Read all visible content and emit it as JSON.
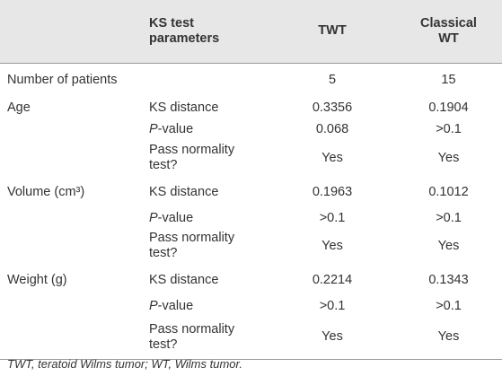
{
  "table": {
    "header": {
      "parameters": "KS test parameters",
      "columns": [
        "TWT",
        "Classical WT"
      ]
    },
    "rows": [
      {
        "label": "Number of patients",
        "values": [
          "5",
          "15"
        ]
      },
      {
        "label": "Age",
        "params": [
          {
            "name": "KS distance",
            "values": [
              "0.3356",
              "0.1904"
            ]
          },
          {
            "name": "P-value",
            "values": [
              "0.068",
              ">0.1"
            ]
          },
          {
            "name": "Pass normality test?",
            "values": [
              "Yes",
              "Yes"
            ]
          }
        ]
      },
      {
        "label": "Volume (cm³)",
        "params": [
          {
            "name": "KS distance",
            "values": [
              "0.1963",
              "0.1012"
            ]
          },
          {
            "name": "P-value",
            "values": [
              ">0.1",
              ">0.1"
            ]
          },
          {
            "name": "Pass normality test?",
            "values": [
              "Yes",
              "Yes"
            ]
          }
        ]
      },
      {
        "label": "Weight (g)",
        "params": [
          {
            "name": "KS distance",
            "values": [
              "0.2214",
              "0.1343"
            ]
          },
          {
            "name": "P-value",
            "values": [
              ">0.1",
              ">0.1"
            ]
          },
          {
            "name": "Pass normality test?",
            "values": [
              "Yes",
              "Yes"
            ]
          }
        ]
      }
    ]
  },
  "footnote": "TWT, teratoid Wilms tumor; WT, Wilms tumor."
}
